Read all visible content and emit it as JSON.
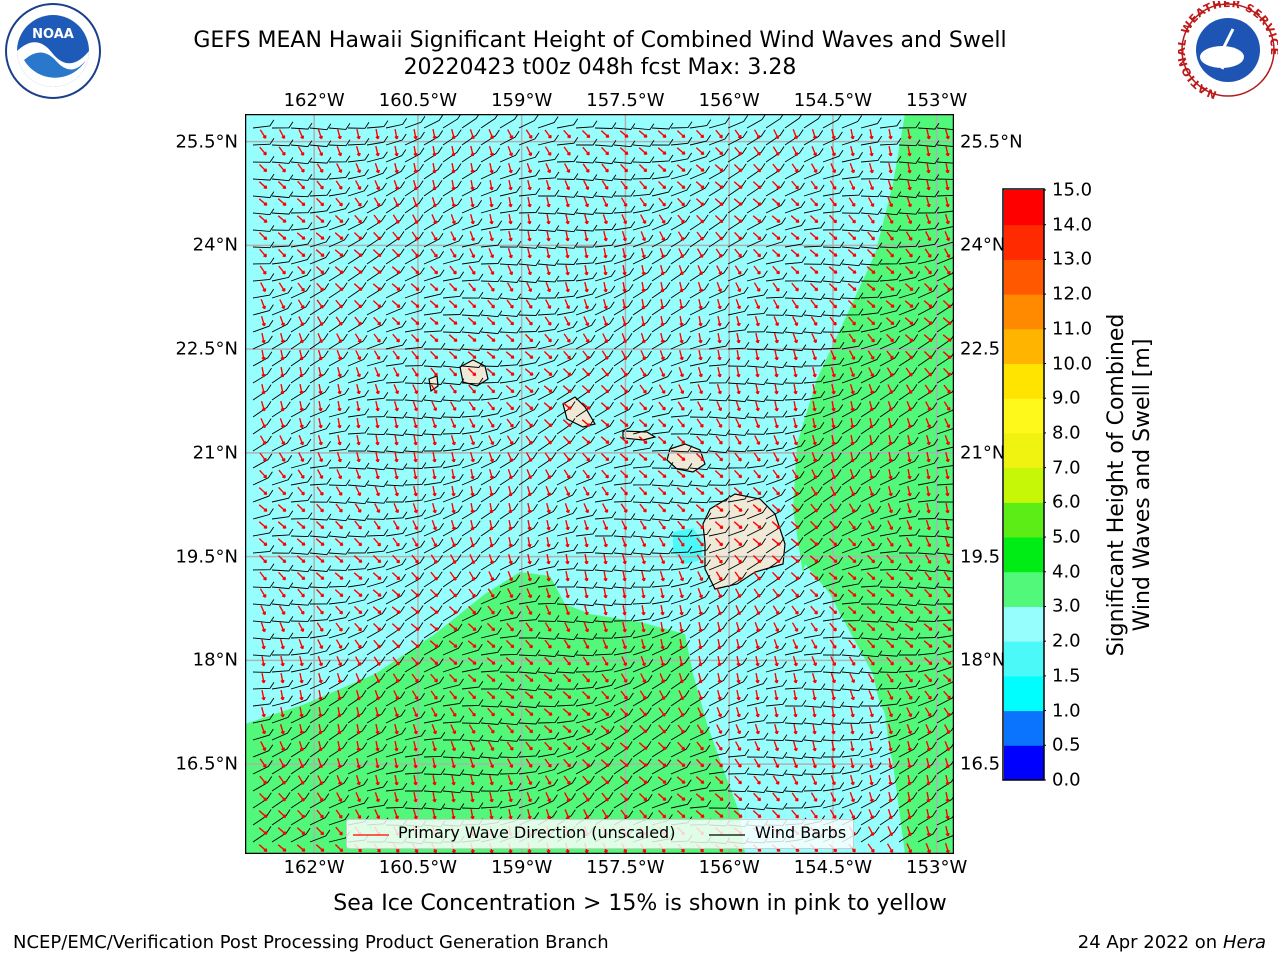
{
  "title": "GEFS MEAN Hawaii Significant Height of Combined Wind Waves and Swell",
  "subtitle": "20220423 t00z 048h fcst   Max: 3.28",
  "map": {
    "lon_ticks": [
      "162°W",
      "160.5°W",
      "159°W",
      "157.5°W",
      "156°W",
      "154.5°W",
      "153°W"
    ],
    "lon_values": [
      -162,
      -160.5,
      -159,
      -157.5,
      -156,
      -154.5,
      -153
    ],
    "lat_ticks_left": [
      "25.5°N",
      "24°N",
      "22.5°N",
      "21°N",
      "19.5°N",
      "18°N",
      "16.5°N"
    ],
    "lat_ticks_right": [
      "25.5°N",
      "24°N",
      "22.5",
      "21°N",
      "19.5",
      "18°N",
      "16.5"
    ],
    "lat_values": [
      25.5,
      24,
      22.5,
      21,
      19.5,
      18,
      16.5
    ],
    "extent": {
      "lon_min": -163,
      "lon_max": -152.75,
      "lat_min": 15.2,
      "lat_max": 25.9
    },
    "colors": {
      "ocean_2to3": "#97fefe",
      "ocean_3to4": "#52f87a",
      "ocean_15to2": "#4cf9f9",
      "land": "#efead7",
      "grid": "#b0b0b0",
      "wave_dir": "#ff0000",
      "barbs": "#000000"
    }
  },
  "legend": {
    "wave_direction_label": "Primary Wave Direction (unscaled)",
    "wind_barbs_label": "Wind Barbs"
  },
  "colorbar": {
    "label_line1": "Significant Height of Combined",
    "label_line2": "Wind Waves and Swell [m]",
    "ticks": [
      "0.0",
      "0.5",
      "1.0",
      "1.5",
      "2.0",
      "3.0",
      "4.0",
      "5.0",
      "6.0",
      "7.0",
      "8.0",
      "9.0",
      "10.0",
      "11.0",
      "12.0",
      "13.0",
      "14.0",
      "15.0"
    ],
    "colors": [
      "#0000ff",
      "#0a74ff",
      "#00fefe",
      "#4cf9f9",
      "#97fefe",
      "#52f87a",
      "#00ec15",
      "#5ded16",
      "#c6f706",
      "#f0f30f",
      "#fff81b",
      "#ffe400",
      "#ffb500",
      "#ff8a00",
      "#ff5800",
      "#ff2a00",
      "#ff0000"
    ]
  },
  "logos": {
    "left": "NOAA",
    "right_ring_text": "NATIONAL WEATHER SERVICE"
  },
  "note": "Sea Ice Concentration > 15% is shown in pink to yellow",
  "footer": {
    "left": "NCEP/EMC/Verification Post Processing Product Generation Branch",
    "right_prefix": "24 Apr 2022 on ",
    "right_host": "Hera"
  }
}
